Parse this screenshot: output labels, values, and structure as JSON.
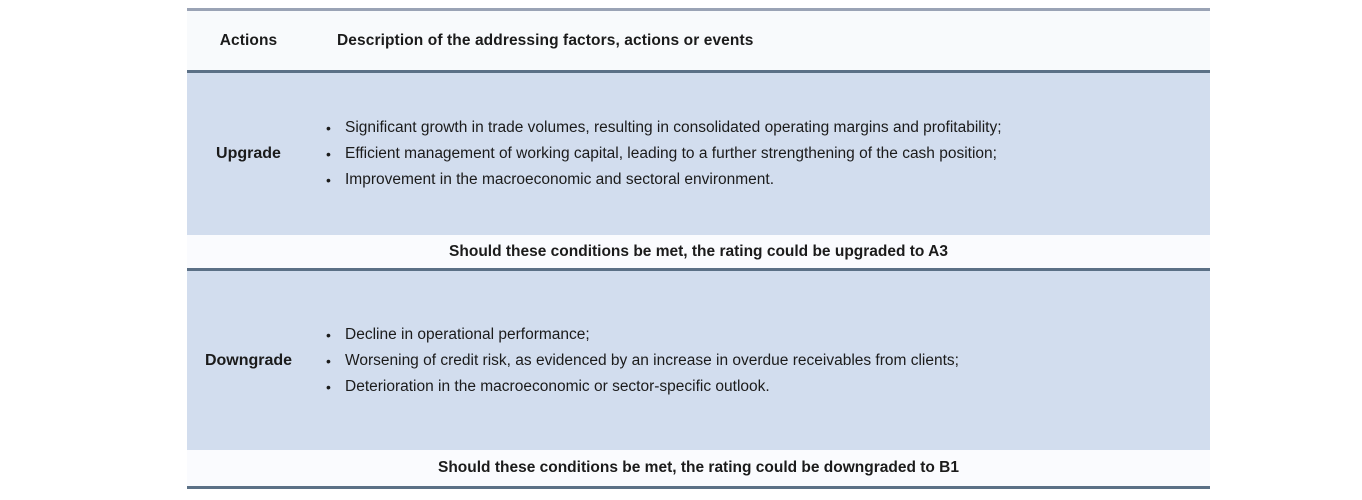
{
  "table": {
    "header": {
      "actions": "Actions",
      "description": "Description of the addressing factors, actions or events"
    },
    "sections": [
      {
        "action": "Upgrade",
        "bullets": [
          "Significant growth in trade volumes, resulting in consolidated operating margins and profitability;",
          "Efficient management of working capital, leading to a further strengthening of the cash position;",
          "Improvement in the macroeconomic and sectoral environment."
        ],
        "outcome": "Should these conditions be met, the rating could be upgraded to A3"
      },
      {
        "action": "Downgrade",
        "bullets": [
          "Decline in operational performance;",
          "Worsening of credit risk, as evidenced by an increase in overdue receivables from clients;",
          "Deterioration in the macroeconomic or sector-specific outlook."
        ],
        "outcome": "Should these conditions be met, the rating could be downgraded to B1"
      }
    ],
    "bullet_glyph": "•",
    "colors": {
      "row_blue": "#d2ddee",
      "outcome_row_bg": "#fafbfe",
      "header_bg": "#f8fafc",
      "border_dark": "#5b7086",
      "border_light": "#9aa3b5",
      "text": "#1b1b1b"
    }
  }
}
